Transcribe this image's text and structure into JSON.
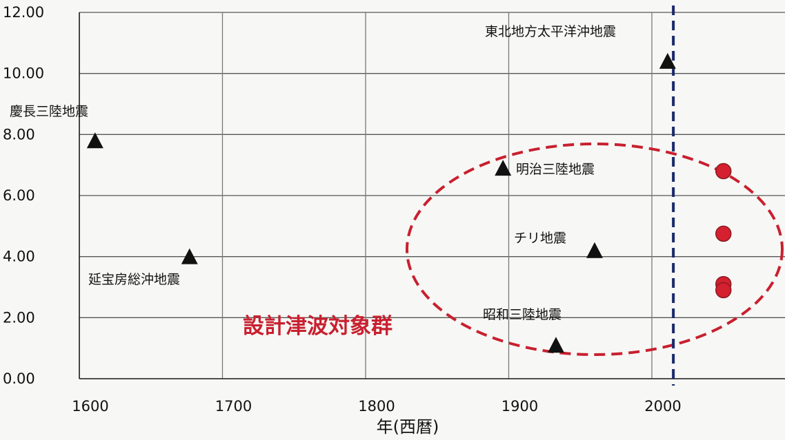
{
  "chart_data": {
    "type": "scatter",
    "xlabel": "年(西暦)",
    "ylabel": "",
    "xlim": [
      1600,
      2090
    ],
    "ylim": [
      0,
      12
    ],
    "x_ticks": [
      1600,
      1700,
      1800,
      1900,
      2000
    ],
    "y_ticks": [
      "0.00",
      "2.00",
      "4.00",
      "6.00",
      "8.00",
      "10.00",
      "12.00"
    ],
    "grid": true,
    "series": [
      {
        "marker": "triangle",
        "color": "#111111",
        "points": [
          {
            "x": 1611,
            "y": 7.8,
            "label": "慶長三陸地震"
          },
          {
            "x": 1677,
            "y": 4.0,
            "label": "延宝房総沖地震"
          },
          {
            "x": 1896,
            "y": 6.9,
            "label": "明治三陸地震"
          },
          {
            "x": 1933,
            "y": 1.1,
            "label": "昭和三陸地震"
          },
          {
            "x": 1960,
            "y": 4.2,
            "label": "チリ地震"
          },
          {
            "x": 2011,
            "y": 10.4,
            "label": "東北地方太平洋沖地震"
          }
        ]
      },
      {
        "marker": "circle",
        "color": "#d4202f",
        "points": [
          {
            "x": 2050,
            "y": 6.8
          },
          {
            "x": 2050,
            "y": 4.75
          },
          {
            "x": 2050,
            "y": 3.1
          },
          {
            "x": 2050,
            "y": 2.9
          }
        ]
      }
    ],
    "annotations": {
      "group_label": "設計津波対象群",
      "group_color": "#c8202f",
      "divider_color": "#1a2a6a",
      "divider_x": 2015
    }
  }
}
